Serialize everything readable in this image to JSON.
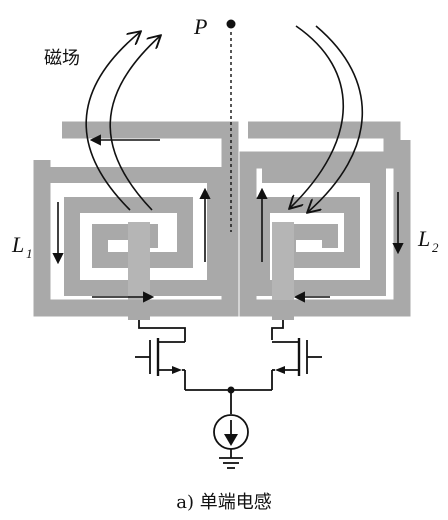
{
  "labels": {
    "magnetic_field": "磁场",
    "point": "P",
    "l1_base": "L",
    "l1_sub": "1",
    "l2_base": "L",
    "l2_sub": "2",
    "caption": "a)  单端电感"
  },
  "colors": {
    "coil_fill": "#a9a9a9",
    "coil_edge": "#8a8a8a",
    "wire": "#111111",
    "background": "#ffffff"
  },
  "icons": {
    "point_marker": "filled-dot",
    "current_arrows": "arrow",
    "field_lines": "curved-arrow",
    "current_source": "current-source-symbol",
    "ground": "ground-symbol",
    "transistor": "mosfet-symbol"
  }
}
